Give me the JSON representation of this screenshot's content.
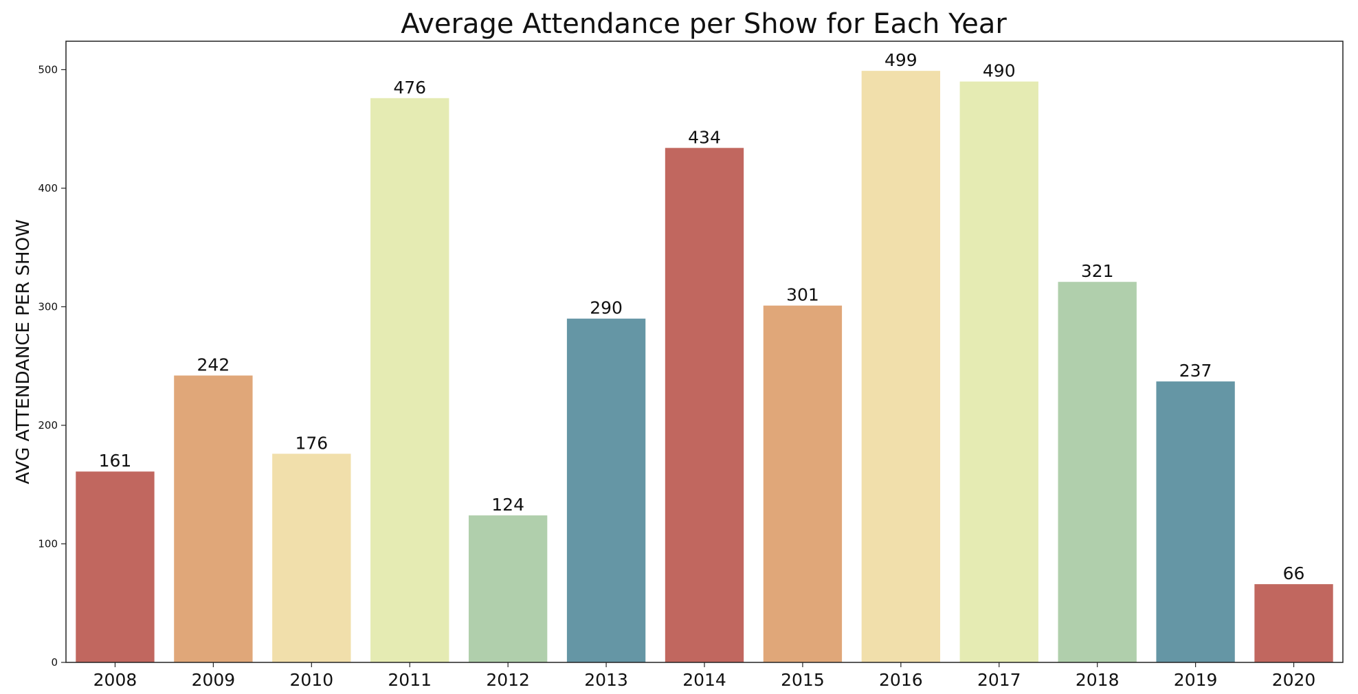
{
  "chart_data": {
    "type": "bar",
    "title": "Average Attendance per Show for Each Year",
    "xlabel": "",
    "ylabel": "AVG ATTENDANCE PER SHOW",
    "categories": [
      "2008",
      "2009",
      "2010",
      "2011",
      "2012",
      "2013",
      "2014",
      "2015",
      "2016",
      "2017",
      "2018",
      "2019",
      "2020"
    ],
    "values": [
      161,
      242,
      176,
      476,
      124,
      290,
      434,
      301,
      499,
      490,
      321,
      237,
      66
    ],
    "data_labels": [
      "161",
      "242",
      "176",
      "476",
      "124",
      "290",
      "434",
      "301",
      "499",
      "490",
      "321",
      "237",
      "66"
    ],
    "ylim": [
      0,
      524
    ],
    "yticks": [
      0,
      100,
      200,
      300,
      400,
      500
    ],
    "ytick_labels": [
      "0",
      "100",
      "200",
      "300",
      "400",
      "500"
    ],
    "grid": false,
    "legend": "none",
    "colors": [
      "#c1675f",
      "#e0a779",
      "#f1dfab",
      "#e5ebb3",
      "#b0cfac",
      "#6596a5",
      "#c1675f",
      "#e0a779",
      "#f1dfab",
      "#e5ebb3",
      "#b0cfac",
      "#6596a5",
      "#c1675f"
    ]
  }
}
